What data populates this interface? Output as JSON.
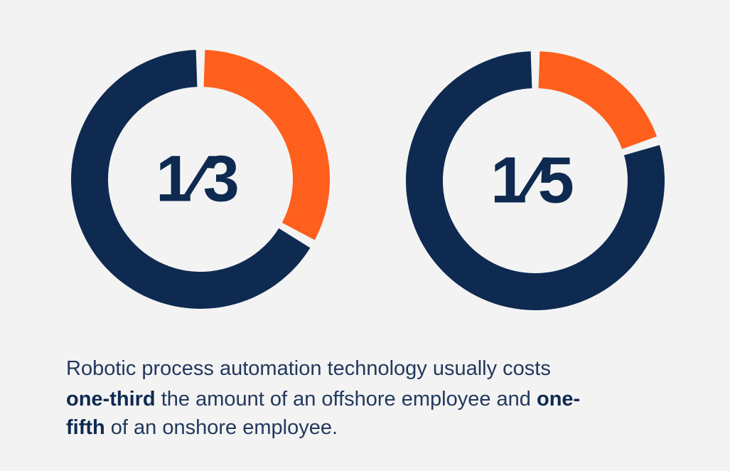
{
  "chart_data": [
    {
      "type": "donut",
      "values": [
        0.3333,
        0.6667
      ],
      "value_labels": [
        "1⁄3",
        null
      ],
      "colors": [
        "#fe5f1c",
        "#0e2a50"
      ]
    },
    {
      "type": "donut",
      "values": [
        0.2,
        0.8
      ],
      "value_labels": [
        "1⁄5",
        null
      ],
      "colors": [
        "#fe5f1c",
        "#0e2a50"
      ]
    }
  ],
  "caption": {
    "lines": [
      [
        {
          "text": "Robotic process automation technology usually costs",
          "bold": false
        }
      ],
      [
        {
          "text": "one-third",
          "bold": true
        },
        {
          "text": " the amount of an offshore employee and ",
          "bold": false
        },
        {
          "text": "one-",
          "bold": true
        }
      ],
      [
        {
          "text": "fifth",
          "bold": true
        },
        {
          "text": " of an onshore employee.",
          "bold": false
        }
      ]
    ]
  }
}
